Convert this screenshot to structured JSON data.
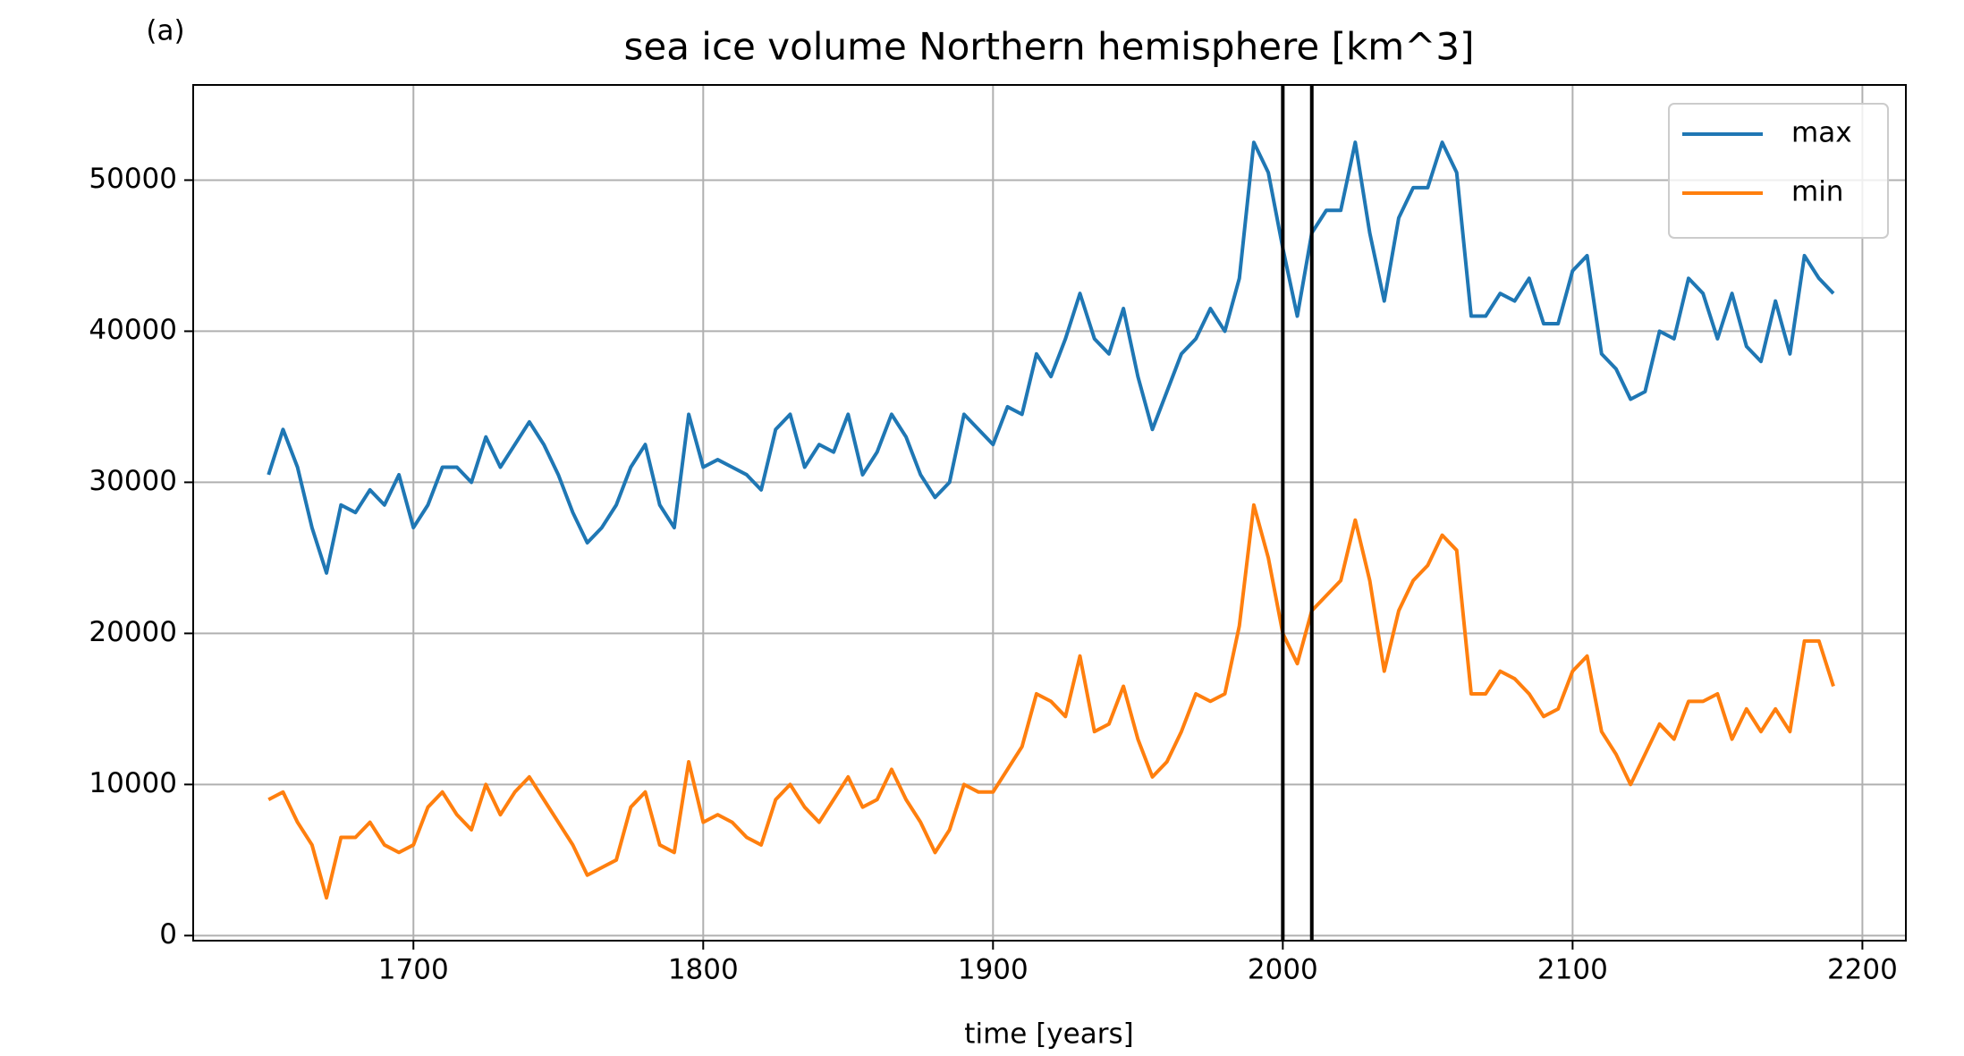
{
  "chart_data": {
    "type": "line",
    "title": "sea ice volume Northern hemisphere [km^3]",
    "panel_label": "(a)",
    "xlabel": "time [years]",
    "x": [
      1650,
      1655,
      1660,
      1665,
      1670,
      1675,
      1680,
      1685,
      1690,
      1695,
      1700,
      1705,
      1710,
      1715,
      1720,
      1725,
      1730,
      1735,
      1740,
      1745,
      1750,
      1755,
      1760,
      1765,
      1770,
      1775,
      1780,
      1785,
      1790,
      1795,
      1800,
      1805,
      1810,
      1815,
      1820,
      1825,
      1830,
      1835,
      1840,
      1845,
      1850,
      1855,
      1860,
      1865,
      1870,
      1875,
      1880,
      1885,
      1890,
      1895,
      1900,
      1905,
      1910,
      1915,
      1920,
      1925,
      1930,
      1935,
      1940,
      1945,
      1950,
      1955,
      1960,
      1965,
      1970,
      1975,
      1980,
      1985,
      1990,
      1995,
      2000,
      2005,
      2010,
      2015,
      2020,
      2025,
      2030,
      2035,
      2040,
      2045,
      2050,
      2055,
      2060,
      2065,
      2070,
      2075,
      2080,
      2085,
      2090,
      2095,
      2100,
      2105,
      2110,
      2115,
      2120,
      2125,
      2130,
      2135,
      2140,
      2145,
      2150,
      2155,
      2160,
      2165,
      2170,
      2175,
      2180,
      2185,
      2190
    ],
    "series": [
      {
        "name": "max",
        "color": "#1f77b4",
        "values": [
          30500,
          33500,
          31000,
          27000,
          24000,
          28500,
          28000,
          29500,
          28500,
          30500,
          27000,
          28500,
          31000,
          31000,
          30000,
          33000,
          31000,
          32500,
          34000,
          32500,
          30500,
          28000,
          26000,
          27000,
          28500,
          31000,
          32500,
          28500,
          27000,
          34500,
          31000,
          31500,
          31000,
          30500,
          29500,
          33500,
          34500,
          31000,
          32500,
          32000,
          34500,
          30500,
          32000,
          34500,
          33000,
          30500,
          29000,
          30000,
          34500,
          33500,
          32500,
          35000,
          34500,
          38500,
          37000,
          39500,
          42500,
          39500,
          38500,
          41500,
          37000,
          33500,
          36000,
          38500,
          39500,
          41500,
          40000,
          43500,
          52500,
          50500,
          45500,
          41000,
          46500,
          48000,
          48000,
          52500,
          46500,
          42000,
          47500,
          49500,
          49500,
          52500,
          50500,
          41000,
          41000,
          42500,
          42000,
          43500,
          40500,
          40500,
          44000,
          45000,
          38500,
          37500,
          35500,
          36000,
          40000,
          39500,
          43500,
          42500,
          39500,
          42500,
          39000,
          38000,
          42000,
          38500,
          45000,
          43500,
          42500
        ]
      },
      {
        "name": "min",
        "color": "#ff7f0e",
        "values": [
          9000,
          9500,
          7500,
          6000,
          2500,
          6500,
          6500,
          7500,
          6000,
          5500,
          6000,
          8500,
          9500,
          8000,
          7000,
          10000,
          8000,
          9500,
          10500,
          9000,
          7500,
          6000,
          4000,
          4500,
          5000,
          8500,
          9500,
          6000,
          5500,
          11500,
          7500,
          8000,
          7500,
          6500,
          6000,
          9000,
          10000,
          8500,
          7500,
          9000,
          10500,
          8500,
          9000,
          11000,
          9000,
          7500,
          5500,
          7000,
          10000,
          9500,
          9500,
          11000,
          12500,
          16000,
          15500,
          14500,
          18500,
          13500,
          14000,
          16500,
          13000,
          10500,
          11500,
          13500,
          16000,
          15500,
          16000,
          20500,
          28500,
          25000,
          20000,
          18000,
          21500,
          22500,
          23500,
          27500,
          23500,
          17500,
          21500,
          23500,
          24500,
          26500,
          25500,
          16000,
          16000,
          17500,
          17000,
          16000,
          14500,
          15000,
          17500,
          18500,
          13500,
          12000,
          10000,
          12000,
          14000,
          13000,
          15500,
          15500,
          16000,
          13000,
          15000,
          13500,
          15000,
          13500,
          19500,
          19500,
          16500
        ]
      }
    ],
    "vlines": [
      2000,
      2010
    ],
    "xlim": [
      1624,
      2215
    ],
    "xticks": [
      1700,
      1800,
      1900,
      2000,
      2100,
      2200
    ],
    "ylim": [
      -336,
      56300
    ],
    "yticks": [
      0,
      10000,
      20000,
      30000,
      40000,
      50000
    ],
    "grid": true,
    "legend": "upper right"
  }
}
